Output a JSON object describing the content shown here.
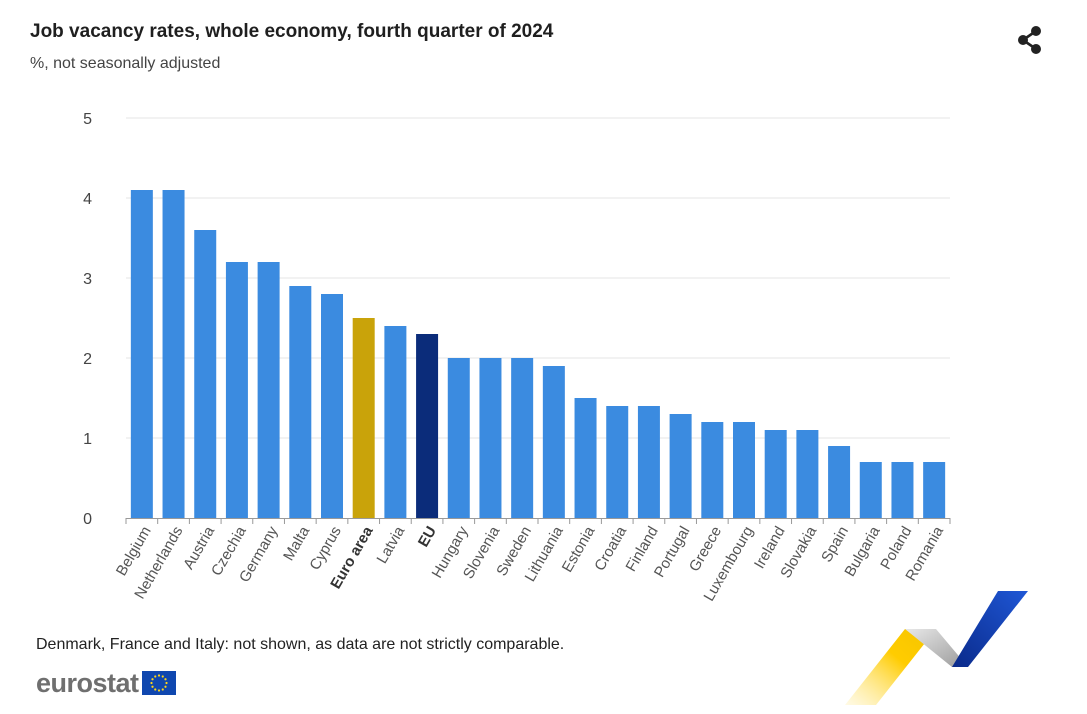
{
  "header": {
    "title": "Job vacancy rates, whole economy, fourth quarter of 2024",
    "subtitle": "%, not seasonally adjusted"
  },
  "share": {
    "icon": "share-icon"
  },
  "footnote": "Denmark, France and Italy: not shown, as data are not strictly comparable.",
  "logo": {
    "text": "eurostat",
    "icon": "eu-flag-icon"
  },
  "colors": {
    "country": "#3b8be0",
    "euro_area": "#c9a30a",
    "eu": "#0b2c7a",
    "grid": "#e6e6e6",
    "axis": "#999999"
  },
  "chart_data": {
    "type": "bar",
    "categories": [
      "Belgium",
      "Netherlands",
      "Austria",
      "Czechia",
      "Germany",
      "Malta",
      "Cyprus",
      "Euro area",
      "Latvia",
      "EU",
      "Hungary",
      "Slovenia",
      "Sweden",
      "Lithuania",
      "Estonia",
      "Croatia",
      "Finland",
      "Portugal",
      "Greece",
      "Luxembourg",
      "Ireland",
      "Slovakia",
      "Spain",
      "Bulgaria",
      "Poland",
      "Romania"
    ],
    "values": [
      4.1,
      4.1,
      3.6,
      3.2,
      3.2,
      2.9,
      2.8,
      2.5,
      2.4,
      2.3,
      2.0,
      2.0,
      2.0,
      1.9,
      1.5,
      1.4,
      1.4,
      1.3,
      1.2,
      1.2,
      1.1,
      1.1,
      0.9,
      0.7,
      0.7,
      0.7
    ],
    "highlight": {
      "Euro area": "euro_area",
      "EU": "eu"
    },
    "bold_labels": [
      "Euro area",
      "EU"
    ],
    "yticks": [
      0,
      1,
      2,
      3,
      4,
      5
    ],
    "ylim": [
      0,
      5
    ],
    "grid": true,
    "legend": false
  }
}
